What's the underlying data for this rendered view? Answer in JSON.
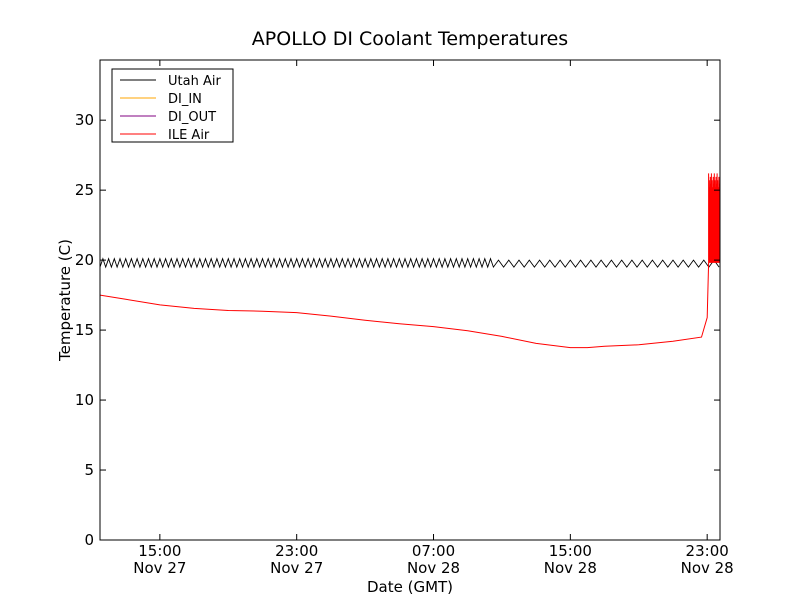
{
  "chart_data": {
    "type": "line",
    "title": "APOLLO DI Coolant Temperatures",
    "xlabel": "Date (GMT)",
    "ylabel": "Temperature (C)",
    "ylim": [
      0,
      34.3
    ],
    "xlim": [
      "Nov 27 11:30",
      "Nov 28 23:45"
    ],
    "yticks": [
      "0",
      "5",
      "10",
      "15",
      "20",
      "25",
      "30"
    ],
    "xticks": [
      {
        "time": "15:00",
        "date": "Nov 27",
        "at": "Nov 27 15:00"
      },
      {
        "time": "23:00",
        "date": "Nov 27",
        "at": "Nov 27 23:00"
      },
      {
        "time": "07:00",
        "date": "Nov 28",
        "at": "Nov 28 07:00"
      },
      {
        "time": "15:00",
        "date": "Nov 28",
        "at": "Nov 28 15:00"
      },
      {
        "time": "23:00",
        "date": "Nov 28",
        "at": "Nov 28 23:00"
      }
    ],
    "grid": false,
    "legend_position": "top-left",
    "series": [
      {
        "name": "Utah Air",
        "color": "#000000",
        "style": "oscillation",
        "segments": [
          {
            "start": "Nov 27 11:30",
            "end": "Nov 28 10:30",
            "low": 19.5,
            "high": 20.1,
            "period_minutes": 20
          },
          {
            "start": "Nov 28 10:30",
            "end": "Nov 28 23:45",
            "low": 19.5,
            "high": 20.0,
            "period_minutes": 36
          }
        ]
      },
      {
        "name": "DI_IN",
        "color": "#ffa500",
        "points": []
      },
      {
        "name": "DI_OUT",
        "color": "#800080",
        "points": []
      },
      {
        "name": "ILE Air",
        "color": "#ff0000",
        "points": [
          [
            "Nov 27 11:30",
            17.5
          ],
          [
            "Nov 27 13:00",
            17.2
          ],
          [
            "Nov 27 15:00",
            16.8
          ],
          [
            "Nov 27 17:00",
            16.55
          ],
          [
            "Nov 27 19:00",
            16.4
          ],
          [
            "Nov 27 21:00",
            16.35
          ],
          [
            "Nov 27 23:00",
            16.25
          ],
          [
            "Nov 28 01:00",
            16.0
          ],
          [
            "Nov 28 03:00",
            15.7
          ],
          [
            "Nov 28 05:00",
            15.45
          ],
          [
            "Nov 28 07:00",
            15.25
          ],
          [
            "Nov 28 09:00",
            14.95
          ],
          [
            "Nov 28 11:00",
            14.55
          ],
          [
            "Nov 28 13:00",
            14.05
          ],
          [
            "Nov 28 15:00",
            13.75
          ],
          [
            "Nov 28 16:00",
            13.75
          ],
          [
            "Nov 28 17:00",
            13.85
          ],
          [
            "Nov 28 19:00",
            13.95
          ],
          [
            "Nov 28 21:00",
            14.2
          ],
          [
            "Nov 28 22:40",
            14.5
          ],
          [
            "Nov 28 23:00",
            15.9
          ],
          [
            "Nov 28 23:05",
            19.8
          ]
        ],
        "spikes": {
          "start": "Nov 28 23:05",
          "end": "Nov 28 23:45",
          "low": 19.8,
          "high": 26.2
        }
      }
    ]
  }
}
